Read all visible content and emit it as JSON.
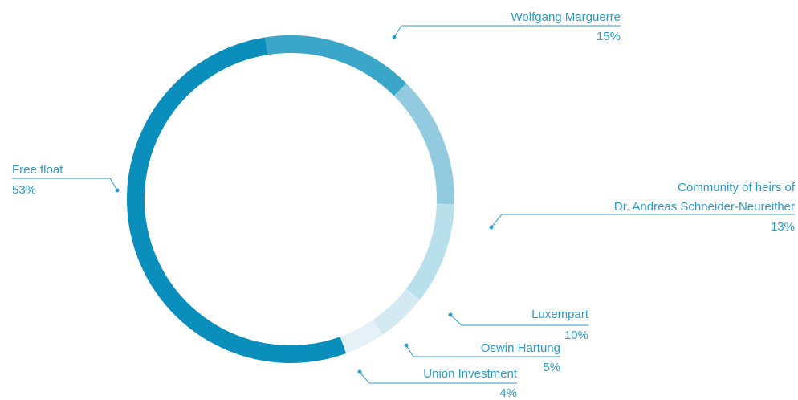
{
  "chart_data": {
    "type": "donut",
    "categories": [
      [
        "Wolfgang Marguerre"
      ],
      [
        "Community of heirs of",
        "Dr. Andreas Schneider-Neureither"
      ],
      [
        "Luxempart"
      ],
      [
        "Oswin Hartung"
      ],
      [
        "Union Investment"
      ],
      [
        "Free float"
      ]
    ],
    "values": [
      15,
      13,
      10,
      5,
      4,
      53
    ],
    "value_labels": [
      "15%",
      "13%",
      "10%",
      "5%",
      "4%",
      "53%"
    ],
    "colors": [
      "#3aa6c9",
      "#92cbe0",
      "#b8dfec",
      "#d3eaf3",
      "#e6f1f7",
      "#0a8fbd"
    ]
  }
}
